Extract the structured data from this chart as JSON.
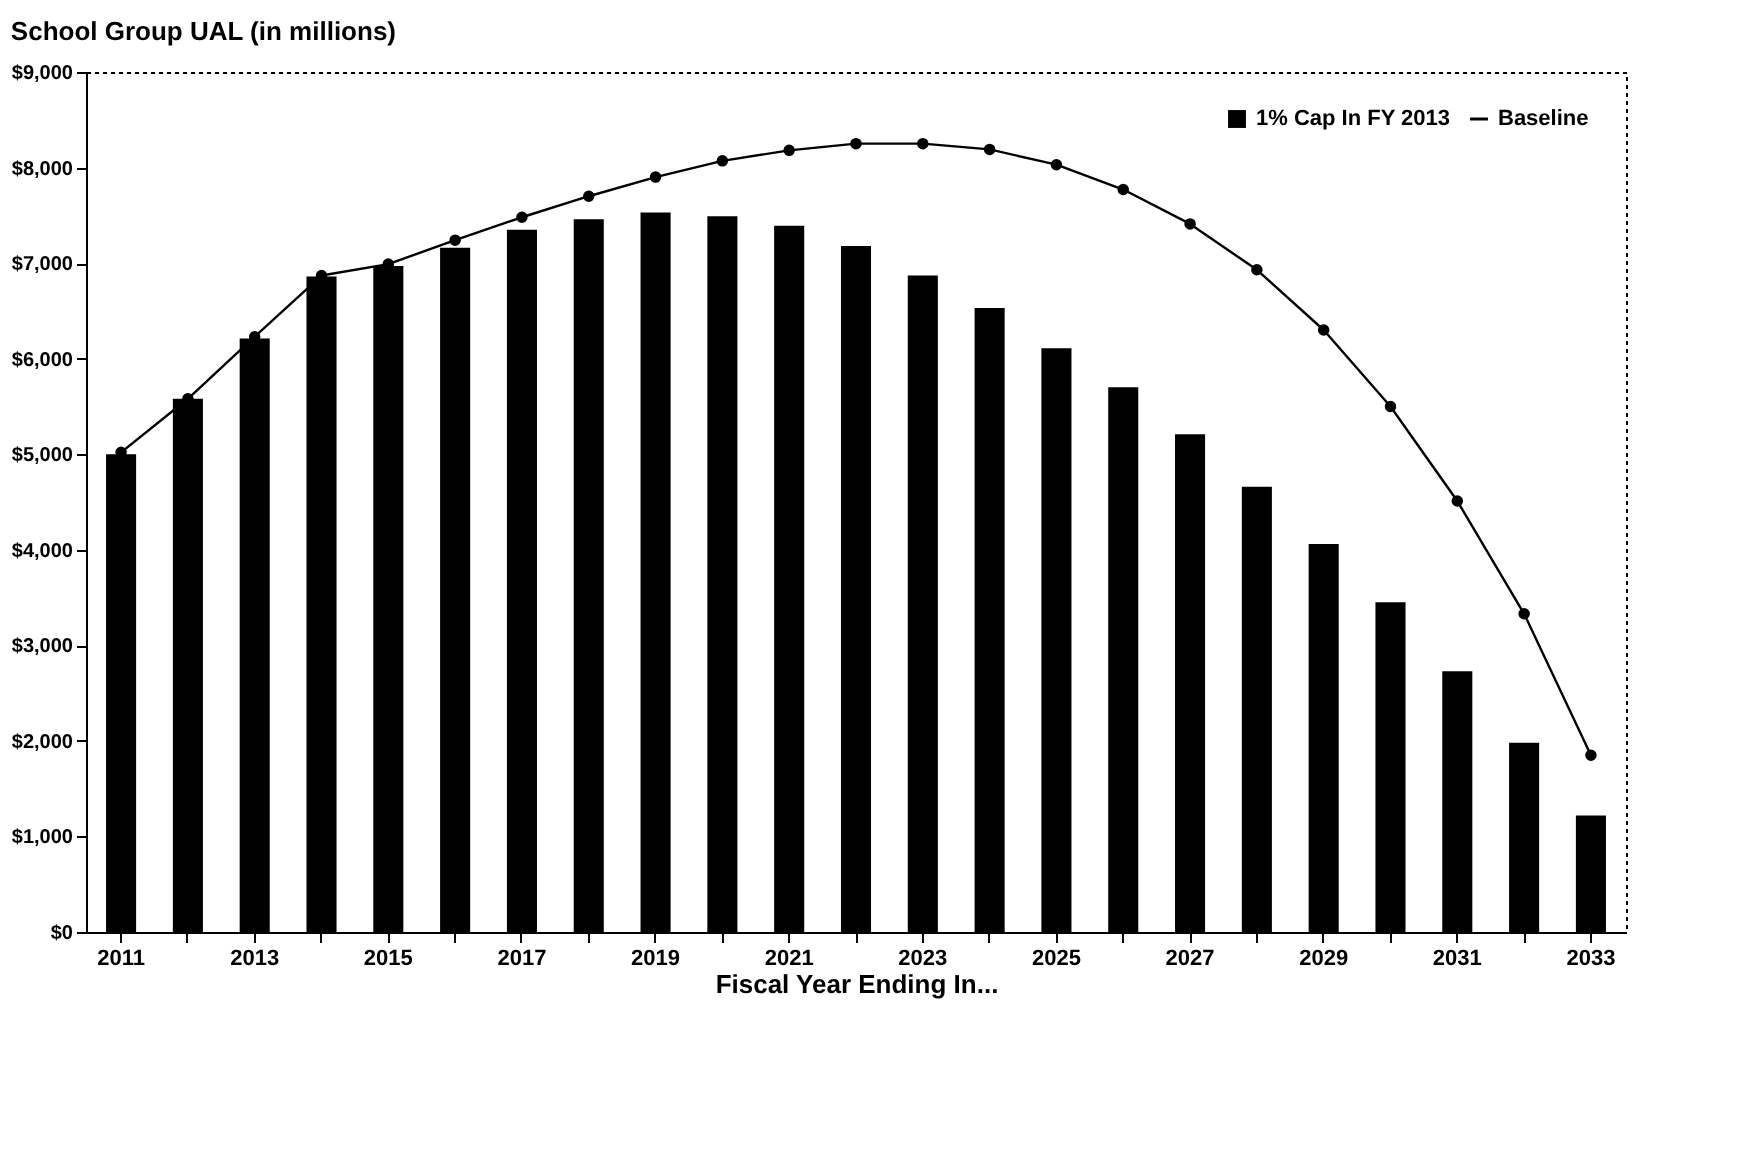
{
  "chart_data": {
    "type": "bar",
    "title": "School Group UAL (in millions)",
    "xlabel": "Fiscal Year Ending In...",
    "categories": [
      "2011",
      null,
      "2013",
      null,
      "2015",
      null,
      "2017",
      null,
      "2019",
      null,
      "2021",
      null,
      "2023",
      null,
      "2025",
      null,
      "2027",
      null,
      "2029",
      null,
      "2031",
      null,
      "2033"
    ],
    "series": [
      {
        "name": "1% Cap In FY 2013",
        "color": "#000000",
        "values": [
          5000,
          5580,
          6210,
          6860,
          6970,
          7160,
          7350,
          7460,
          7530,
          7490,
          7390,
          7180,
          6870,
          6530,
          6110,
          5700,
          5210,
          4660,
          4060,
          3450,
          2730,
          1980,
          1220
        ]
      },
      {
        "name": "Baseline",
        "type": "line",
        "color": "#000000",
        "values": [
          5020,
          5580,
          6230,
          6870,
          6990,
          7240,
          7480,
          7700,
          7900,
          8070,
          8180,
          8250,
          8250,
          8190,
          8030,
          7770,
          7410,
          6930,
          6300,
          5500,
          4510,
          3330,
          1850
        ]
      }
    ],
    "ylim": [
      0,
      9000
    ],
    "yticks": [
      {
        "value": 0,
        "label": "$0"
      },
      {
        "value": 1000,
        "label": "$1,000"
      },
      {
        "value": 2000,
        "label": "$2,000"
      },
      {
        "value": 3000,
        "label": "$3,000"
      },
      {
        "value": 4000,
        "label": "$4,000"
      },
      {
        "value": 5000,
        "label": "$5,000"
      },
      {
        "value": 6000,
        "label": "$6,000"
      },
      {
        "value": 7000,
        "label": "$7,000"
      },
      {
        "value": 8000,
        "label": "$8,000"
      },
      {
        "value": 9000,
        "label": "$9,000"
      }
    ],
    "legend": "top right",
    "marker": "circle"
  }
}
